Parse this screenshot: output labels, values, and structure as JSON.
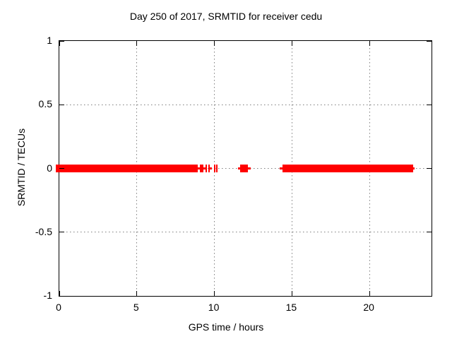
{
  "chart_data": {
    "type": "scatter",
    "title": "Day 250 of 2017, SRMTID for receiver cedu",
    "xlabel": "GPS time / hours",
    "ylabel": "SRMTID / TECUs",
    "xlim": [
      0,
      24
    ],
    "ylim": [
      -1,
      1
    ],
    "xticks": [
      0,
      5,
      10,
      15,
      20
    ],
    "xtick_labels": [
      "0",
      "5",
      "10",
      "15",
      "20"
    ],
    "yticks": [
      1,
      0.5,
      0,
      -0.5,
      -1
    ],
    "ytick_labels": [
      "1",
      "0.5",
      "0",
      "-0.5",
      "-1"
    ],
    "grid": true,
    "legend": "none",
    "series": [
      {
        "name": "SRMTID",
        "color": "#ff0000",
        "y_value": 0,
        "segments": [
          {
            "x1": 0.0,
            "x2": 8.93,
            "style": "full"
          },
          {
            "x1": 8.93,
            "x2": 9.06,
            "style": "thin"
          },
          {
            "x1": 9.06,
            "x2": 9.29,
            "style": "full"
          },
          {
            "x1": 9.29,
            "x2": 9.43,
            "style": "thin"
          },
          {
            "x1": 9.43,
            "x2": 9.52,
            "style": "full"
          },
          {
            "x1": 9.61,
            "x2": 9.66,
            "style": "full"
          },
          {
            "x1": 9.66,
            "x2": 9.84,
            "style": "thin"
          },
          {
            "x1": 9.97,
            "x2": 10.02,
            "style": "full"
          },
          {
            "x1": 10.11,
            "x2": 10.16,
            "style": "full"
          },
          {
            "x1": 11.52,
            "x2": 11.66,
            "style": "thin"
          },
          {
            "x1": 11.66,
            "x2": 12.16,
            "style": "full"
          },
          {
            "x1": 12.16,
            "x2": 12.34,
            "style": "thin"
          },
          {
            "x1": 14.21,
            "x2": 14.39,
            "style": "thin"
          },
          {
            "x1": 14.39,
            "x2": 22.81,
            "style": "full"
          },
          {
            "x1": 22.81,
            "x2": 22.9,
            "style": "thin"
          }
        ]
      }
    ]
  },
  "colors": {
    "background": "#ffffff",
    "border": "#000000",
    "grid": "#7f7f7f",
    "series": "#ff0000",
    "text": "#000000"
  }
}
